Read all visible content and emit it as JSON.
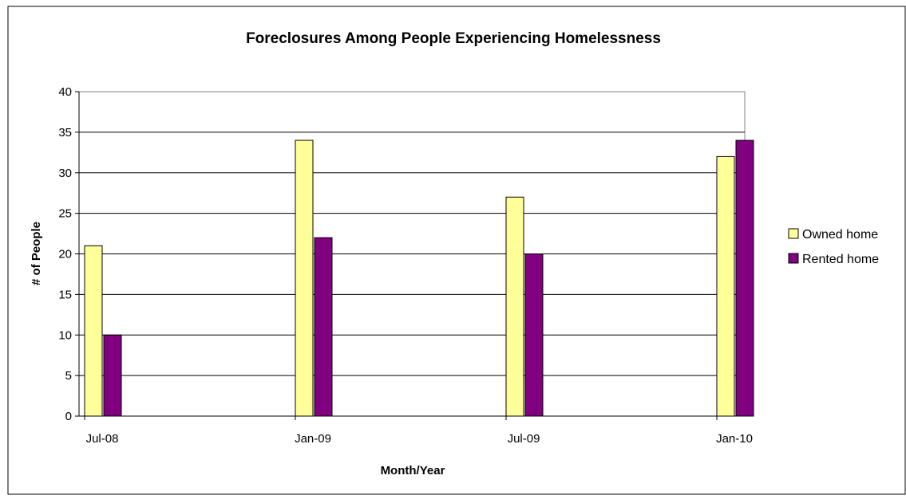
{
  "chart_data": {
    "type": "bar",
    "title": "Foreclosures Among People Experiencing Homelessness",
    "xlabel": "Month/Year",
    "ylabel": "# of People",
    "categories": [
      "Jul-08",
      "Jan-09",
      "Jul-09",
      "Jan-10"
    ],
    "series": [
      {
        "name": "Owned home",
        "values": [
          21,
          34,
          27,
          32
        ],
        "color": "#ffff99"
      },
      {
        "name": "Rented home",
        "values": [
          10,
          22,
          20,
          34
        ],
        "color": "#800080"
      }
    ],
    "ylim": [
      0,
      40
    ],
    "y_ticks": [
      0,
      5,
      10,
      15,
      20,
      25,
      30,
      35,
      40
    ],
    "grid": true,
    "legend_position": "right"
  }
}
